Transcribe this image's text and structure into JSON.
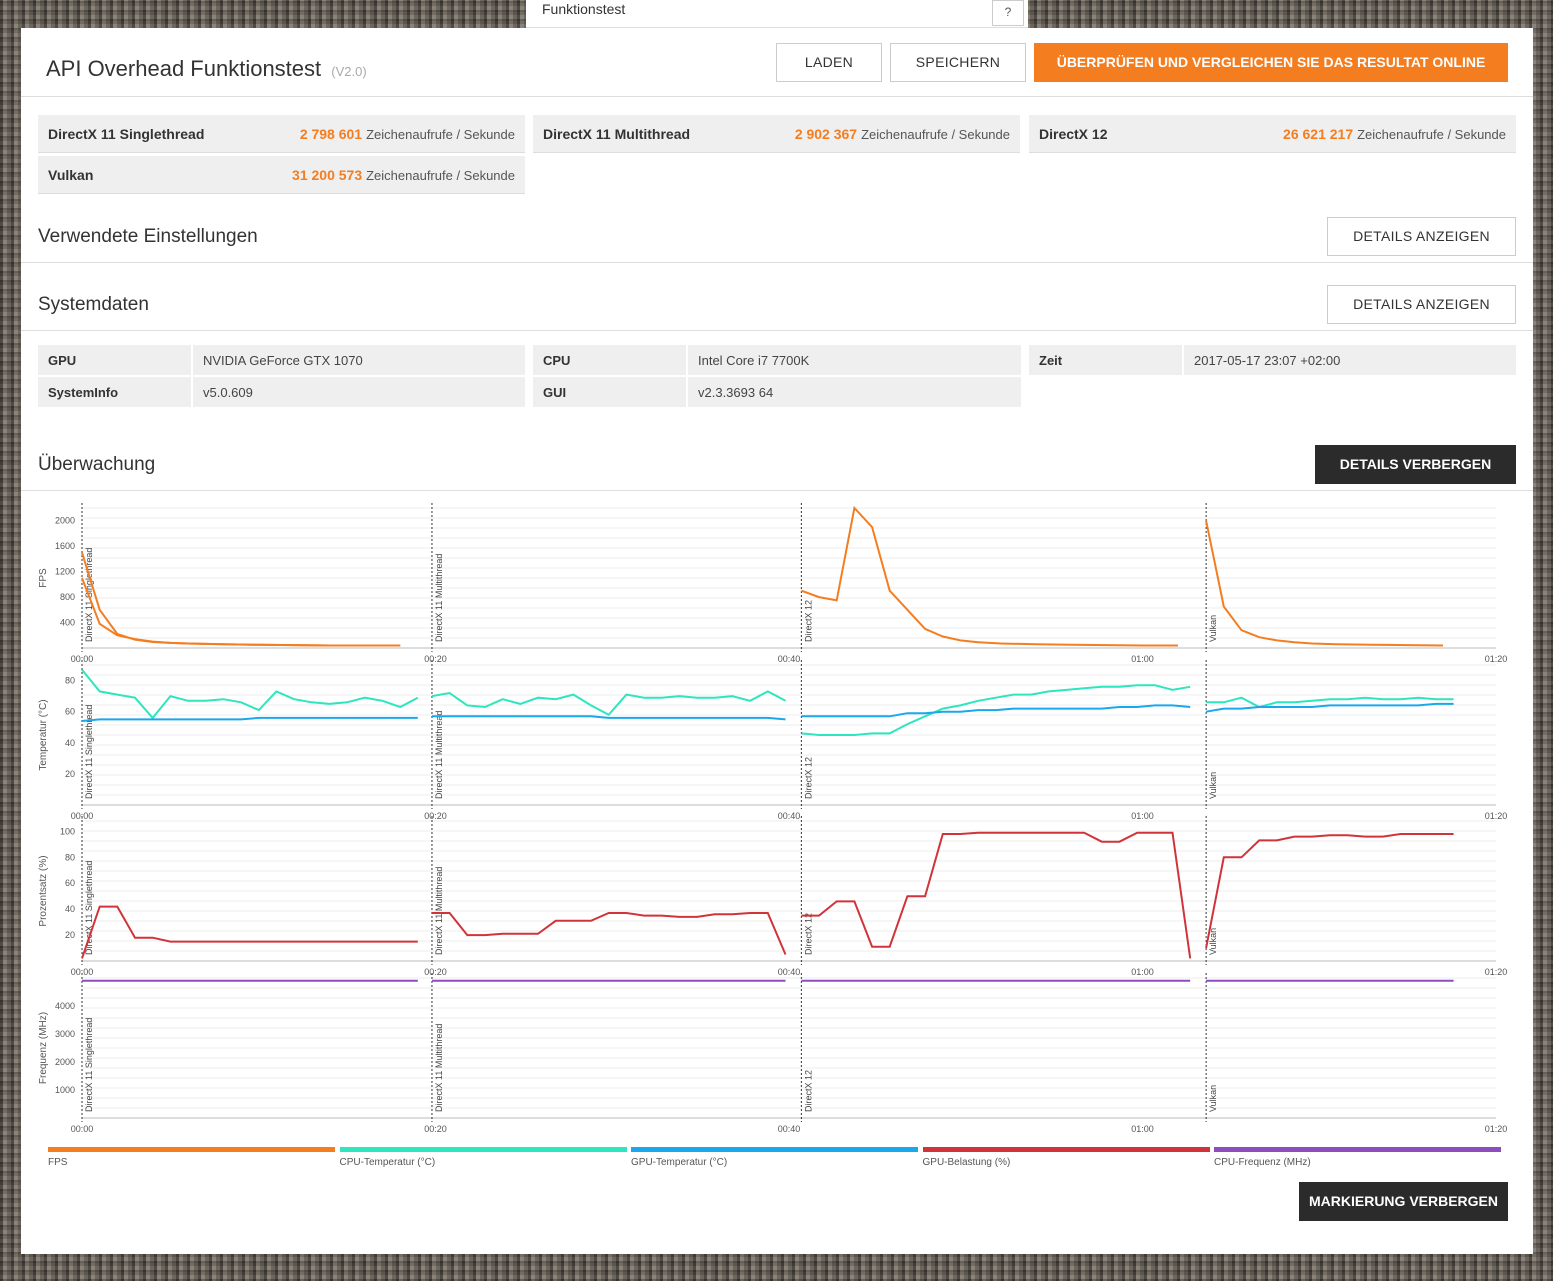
{
  "top_tab": {
    "label": "Funktionstest",
    "help": "?"
  },
  "header": {
    "title": "API Overhead Funktionstest",
    "version": "(V2.0)",
    "load_label": "LADEN",
    "save_label": "SPEICHERN",
    "online_label": "ÜBERPRÜFEN UND VERGLEICHEN SIE DAS RESULTAT ONLINE"
  },
  "scores": [
    {
      "name": "DirectX 11 Singlethread",
      "value": "2 798 601",
      "unit": "Zeichenaufrufe / Sekunde"
    },
    {
      "name": "DirectX 11 Multithread",
      "value": "2 902 367",
      "unit": "Zeichenaufrufe / Sekunde"
    },
    {
      "name": "DirectX 12",
      "value": "26 621 217",
      "unit": "Zeichenaufrufe / Sekunde"
    },
    {
      "name": "Vulkan",
      "value": "31 200 573",
      "unit": "Zeichenaufrufe / Sekunde"
    }
  ],
  "settings": {
    "title": "Verwendete Einstellungen",
    "button": "DETAILS ANZEIGEN"
  },
  "system": {
    "title": "Systemdaten",
    "button": "DETAILS ANZEIGEN",
    "rows": [
      {
        "key": "GPU",
        "value": "NVIDIA GeForce GTX 1070"
      },
      {
        "key": "CPU",
        "value": "Intel Core i7 7700K"
      },
      {
        "key": "Zeit",
        "value": "2017-05-17 23:07 +02:00"
      },
      {
        "key": "SystemInfo",
        "value": "v5.0.609"
      },
      {
        "key": "GUI",
        "value": "v2.3.3693 64"
      }
    ]
  },
  "monitoring": {
    "title": "Überwachung",
    "hide_details": "DETAILS VERBERGEN",
    "hide_markers": "MARKIERUNG VERBERGEN"
  },
  "colors": {
    "fps": "#f47d20",
    "cpu_temp": "#2de6bd",
    "gpu_temp": "#1aa7ec",
    "gpu_load": "#d0343a",
    "cpu_freq": "#8e4dbf",
    "orange": "#f47d20"
  },
  "chart_data": [
    {
      "type": "line",
      "ylabel": "FPS",
      "ylim": [
        0,
        2200
      ],
      "yticks": [
        400,
        800,
        1200,
        1600,
        2000
      ],
      "xticks": [
        "00:00",
        "00:20",
        "00:40",
        "01:00",
        "01:20"
      ],
      "xlim": [
        0,
        80
      ],
      "markers": [
        {
          "t": 0,
          "label": "DirectX 11 Singlethread"
        },
        {
          "t": 19.8,
          "label": "DirectX 11 Multithread"
        },
        {
          "t": 40.7,
          "label": "DirectX 12"
        },
        {
          "t": 63.6,
          "label": "Vulkan"
        }
      ],
      "series": [
        {
          "name": "FPS",
          "color": "fps",
          "segments": [
            {
              "x": [
                0,
                1,
                2,
                3,
                4,
                5,
                6,
                8,
                10,
                12,
                14,
                16,
                18
              ],
              "y": [
                1500,
                600,
                220,
                130,
                95,
                80,
                70,
                60,
                50,
                45,
                40,
                40,
                40
              ]
            },
            {
              "x": [
                0,
                1,
                2,
                3,
                4,
                5,
                6,
                8,
                10,
                12,
                14,
                16,
                18
              ],
              "y": [
                1100,
                380,
                200,
                140,
                100,
                80,
                70,
                60,
                50,
                45,
                40,
                40,
                40
              ]
            },
            {
              "x": [
                40.7,
                41.7,
                42.7,
                43.7,
                44.7,
                45.7,
                46.7,
                47.7,
                48.7,
                49.7,
                50.7,
                52,
                54,
                56,
                58,
                60,
                62
              ],
              "y": [
                900,
                800,
                750,
                2200,
                1900,
                900,
                600,
                300,
                180,
                120,
                90,
                70,
                60,
                50,
                45,
                40,
                40
              ]
            },
            {
              "x": [
                63.6,
                64.6,
                65.6,
                66.6,
                67.6,
                68.6,
                69.6,
                71,
                73,
                75,
                77
              ],
              "y": [
                2000,
                650,
                280,
                170,
                120,
                90,
                70,
                60,
                50,
                45,
                40
              ]
            }
          ]
        }
      ]
    },
    {
      "type": "line",
      "ylabel": "Temperatur (°C)",
      "ylim": [
        0,
        90
      ],
      "yticks": [
        20,
        40,
        60,
        80
      ],
      "xticks": [
        "00:00",
        "00:20",
        "00:40",
        "01:00",
        "01:20"
      ],
      "xlim": [
        0,
        80
      ],
      "markers": [
        {
          "t": 0,
          "label": "DirectX 11 Singlethread"
        },
        {
          "t": 19.8,
          "label": "DirectX 11 Multithread"
        },
        {
          "t": 40.7,
          "label": "DirectX 12"
        },
        {
          "t": 63.6,
          "label": "Vulkan"
        }
      ],
      "series": [
        {
          "name": "CPU-Temperatur (°C)",
          "color": "cpu_temp",
          "segments": [
            {
              "x": [
                0,
                1,
                2,
                3,
                4,
                5,
                6,
                7,
                8,
                9,
                10,
                11,
                12,
                13,
                14,
                15,
                16,
                17,
                18,
                19
              ],
              "y": [
                87,
                73,
                71,
                69,
                56,
                70,
                67,
                67,
                68,
                66,
                61,
                73,
                68,
                66,
                65,
                66,
                69,
                67,
                63,
                69
              ]
            },
            {
              "x": [
                19.8,
                20.8,
                21.8,
                22.8,
                23.8,
                24.8,
                25.8,
                26.8,
                27.8,
                28.8,
                29.8,
                30.8,
                31.8,
                32.8,
                33.8,
                34.8,
                35.8,
                36.8,
                37.8,
                38.8,
                39.8
              ],
              "y": [
                70,
                72,
                64,
                63,
                68,
                65,
                69,
                68,
                71,
                64,
                58,
                71,
                69,
                69,
                70,
                69,
                69,
                70,
                67,
                73,
                67
              ]
            },
            {
              "x": [
                40.7,
                41.7,
                42.7,
                43.7,
                44.7,
                45.7,
                46.7,
                47.7,
                48.7,
                49.7,
                50.7,
                51.7,
                52.7,
                53.7,
                54.7,
                55.7,
                56.7,
                57.7,
                58.7,
                59.7,
                60.7,
                61.7,
                62.7
              ],
              "y": [
                46,
                45,
                45,
                45,
                46,
                46,
                52,
                57,
                62,
                64,
                67,
                69,
                71,
                71,
                73,
                74,
                75,
                76,
                76,
                77,
                77,
                74,
                76
              ]
            },
            {
              "x": [
                63.6,
                64.6,
                65.6,
                66.6,
                67.6,
                68.6,
                69.6,
                70.6,
                71.6,
                72.6,
                73.6,
                74.6,
                75.6,
                76.6,
                77.6
              ],
              "y": [
                66,
                66,
                69,
                63,
                66,
                66,
                67,
                68,
                68,
                69,
                68,
                68,
                69,
                68,
                68
              ]
            }
          ]
        },
        {
          "name": "GPU-Temperatur (°C)",
          "color": "gpu_temp",
          "segments": [
            {
              "x": [
                0,
                1,
                2,
                3,
                4,
                5,
                6,
                7,
                8,
                9,
                10,
                11,
                12,
                13,
                14,
                15,
                16,
                17,
                18,
                19
              ],
              "y": [
                54,
                55,
                55,
                55,
                55,
                55,
                55,
                55,
                55,
                55,
                56,
                56,
                56,
                56,
                56,
                56,
                56,
                56,
                56,
                56
              ]
            },
            {
              "x": [
                19.8,
                20.8,
                21.8,
                22.8,
                23.8,
                24.8,
                25.8,
                26.8,
                27.8,
                28.8,
                29.8,
                30.8,
                31.8,
                32.8,
                33.8,
                34.8,
                35.8,
                36.8,
                37.8,
                38.8,
                39.8
              ],
              "y": [
                57,
                57,
                57,
                57,
                57,
                57,
                57,
                57,
                57,
                57,
                56,
                56,
                56,
                56,
                56,
                56,
                56,
                56,
                56,
                56,
                55
              ]
            },
            {
              "x": [
                40.7,
                41.7,
                42.7,
                43.7,
                44.7,
                45.7,
                46.7,
                47.7,
                48.7,
                49.7,
                50.7,
                51.7,
                52.7,
                53.7,
                54.7,
                55.7,
                56.7,
                57.7,
                58.7,
                59.7,
                60.7,
                61.7,
                62.7
              ],
              "y": [
                57,
                57,
                57,
                57,
                57,
                57,
                59,
                59,
                60,
                60,
                61,
                61,
                62,
                62,
                62,
                62,
                62,
                62,
                63,
                63,
                64,
                64,
                63
              ]
            },
            {
              "x": [
                63.6,
                64.6,
                65.6,
                66.6,
                67.6,
                68.6,
                69.6,
                70.6,
                71.6,
                72.6,
                73.6,
                74.6,
                75.6,
                76.6,
                77.6
              ],
              "y": [
                60,
                62,
                62,
                63,
                63,
                63,
                63,
                64,
                64,
                64,
                64,
                64,
                64,
                65,
                65
              ]
            }
          ]
        }
      ]
    },
    {
      "type": "line",
      "ylabel": "Prozentsatz (%)",
      "ylim": [
        0,
        108
      ],
      "yticks": [
        20,
        40,
        60,
        80,
        100
      ],
      "xticks": [
        "00:00",
        "00:20",
        "00:40",
        "01:00",
        "01:20"
      ],
      "xlim": [
        0,
        80
      ],
      "markers": [
        {
          "t": 0,
          "label": "DirectX 11 Singlethread"
        },
        {
          "t": 19.8,
          "label": "DirectX 11 Multithread"
        },
        {
          "t": 40.7,
          "label": "DirectX 12"
        },
        {
          "t": 63.6,
          "label": "Vulkan"
        }
      ],
      "series": [
        {
          "name": "GPU-Belastung (%)",
          "color": "gpu_load",
          "segments": [
            {
              "x": [
                0,
                1,
                2,
                3,
                4,
                5,
                6,
                7,
                8,
                10,
                12,
                14,
                16,
                18,
                19
              ],
              "y": [
                2,
                42,
                42,
                18,
                18,
                15,
                15,
                15,
                15,
                15,
                15,
                15,
                15,
                15,
                15
              ]
            },
            {
              "x": [
                19.8,
                20.8,
                21.8,
                22.8,
                23.8,
                24.8,
                25.8,
                26.8,
                27.8,
                28.8,
                29.8,
                30.8,
                31.8,
                32.8,
                33.8,
                34.8,
                35.8,
                36.8,
                37.8,
                38.8,
                39.8
              ],
              "y": [
                37,
                37,
                20,
                20,
                21,
                21,
                21,
                31,
                31,
                31,
                37,
                37,
                35,
                35,
                34,
                34,
                36,
                36,
                37,
                37,
                5
              ]
            },
            {
              "x": [
                40.7,
                41.7,
                42.7,
                43.7,
                44.7,
                45.7,
                46.7,
                47.7,
                48.7,
                49.7,
                50.7,
                51.7,
                52.7,
                53.7,
                54.7,
                55.7,
                56.7,
                57.7,
                58.7,
                59.7,
                60.7,
                61.7,
                62.7
              ],
              "y": [
                35,
                35,
                46,
                46,
                11,
                11,
                50,
                50,
                98,
                98,
                99,
                99,
                99,
                99,
                99,
                99,
                99,
                92,
                92,
                99,
                99,
                99,
                2
              ]
            },
            {
              "x": [
                63.6,
                64.6,
                65.6,
                66.6,
                67.6,
                68.6,
                69.6,
                70.6,
                71.6,
                72.6,
                73.6,
                74.6,
                75.6,
                76.6,
                77.6
              ],
              "y": [
                10,
                80,
                80,
                93,
                93,
                96,
                96,
                97,
                97,
                96,
                96,
                98,
                98,
                98,
                98
              ]
            }
          ]
        }
      ]
    },
    {
      "type": "line",
      "ylabel": "Frequenz (MHz)",
      "ylim": [
        0,
        5000
      ],
      "yticks": [
        1000,
        2000,
        3000,
        4000
      ],
      "xticks": [
        "00:00",
        "00:20",
        "00:40",
        "01:00",
        "01:20"
      ],
      "xlim": [
        0,
        80
      ],
      "markers": [
        {
          "t": 0,
          "label": "DirectX 11 Singlethread"
        },
        {
          "t": 19.8,
          "label": "DirectX 11 Multithread"
        },
        {
          "t": 40.7,
          "label": "DirectX 12"
        },
        {
          "t": 63.6,
          "label": "Vulkan"
        }
      ],
      "series": [
        {
          "name": "CPU-Frequenz (MHz)",
          "color": "cpu_freq",
          "segments": [
            {
              "x": [
                0,
                19
              ],
              "y": [
                4900,
                4900
              ]
            },
            {
              "x": [
                19.8,
                39.8
              ],
              "y": [
                4900,
                4900
              ]
            },
            {
              "x": [
                40.7,
                62.7
              ],
              "y": [
                4900,
                4900
              ]
            },
            {
              "x": [
                63.6,
                77.6
              ],
              "y": [
                4900,
                4900
              ]
            }
          ]
        }
      ]
    }
  ],
  "legend": [
    {
      "label": "FPS",
      "color": "fps"
    },
    {
      "label": "CPU-Temperatur (°C)",
      "color": "cpu_temp"
    },
    {
      "label": "GPU-Temperatur (°C)",
      "color": "gpu_temp"
    },
    {
      "label": "GPU-Belastung (%)",
      "color": "gpu_load"
    },
    {
      "label": "CPU-Frequenz (MHz)",
      "color": "cpu_freq"
    }
  ]
}
